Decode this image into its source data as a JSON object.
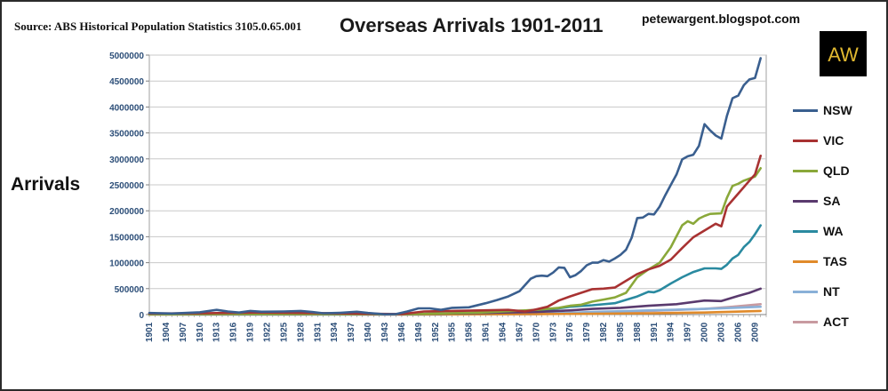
{
  "header": {
    "source": "Source: ABS Historical Population Statistics 3105.0.65.001",
    "blog": "petewargent.blogspot.com",
    "logo_text": "AW"
  },
  "chart_data": {
    "type": "line",
    "title": "Overseas Arrivals 1901-2011",
    "xlabel": "",
    "ylabel": "Arrivals",
    "ylim": [
      0,
      5000000
    ],
    "yticks": [
      0,
      500000,
      1000000,
      1500000,
      2000000,
      2500000,
      3000000,
      3500000,
      4000000,
      4500000,
      5000000
    ],
    "ytick_labels": [
      "0",
      "500000",
      "1000000",
      "1500000",
      "2000000",
      "2500000",
      "3000000",
      "3500000",
      "4000000",
      "4500000",
      "5000000"
    ],
    "x_start": 1901,
    "x_end": 2011,
    "xtick_labels": [
      "1901",
      "1904",
      "1907",
      "1910",
      "1913",
      "1916",
      "1919",
      "1922",
      "1925",
      "1928",
      "1931",
      "1934",
      "1937",
      "1940",
      "1943",
      "1946",
      "1949",
      "1952",
      "1955",
      "1958",
      "1961",
      "1964",
      "1967",
      "1970",
      "1973",
      "1976",
      "1979",
      "1982",
      "1985",
      "1988",
      "1991",
      "1994",
      "1997",
      "2000",
      "2003",
      "2006",
      "2009"
    ],
    "grid": true,
    "legend_position": "right",
    "series": [
      {
        "name": "NSW",
        "color": "#3a5f8f",
        "points": [
          [
            1901,
            30000
          ],
          [
            1905,
            20000
          ],
          [
            1910,
            45000
          ],
          [
            1913,
            90000
          ],
          [
            1915,
            60000
          ],
          [
            1917,
            40000
          ],
          [
            1919,
            70000
          ],
          [
            1921,
            55000
          ],
          [
            1925,
            60000
          ],
          [
            1928,
            70000
          ],
          [
            1930,
            50000
          ],
          [
            1932,
            25000
          ],
          [
            1935,
            35000
          ],
          [
            1938,
            55000
          ],
          [
            1940,
            30000
          ],
          [
            1943,
            5000
          ],
          [
            1945,
            10000
          ],
          [
            1947,
            60000
          ],
          [
            1949,
            120000
          ],
          [
            1951,
            120000
          ],
          [
            1953,
            90000
          ],
          [
            1955,
            130000
          ],
          [
            1958,
            140000
          ],
          [
            1961,
            220000
          ],
          [
            1963,
            280000
          ],
          [
            1965,
            350000
          ],
          [
            1967,
            450000
          ],
          [
            1969,
            690000
          ],
          [
            1970,
            740000
          ],
          [
            1971,
            750000
          ],
          [
            1972,
            740000
          ],
          [
            1973,
            810000
          ],
          [
            1974,
            910000
          ],
          [
            1975,
            900000
          ],
          [
            1976,
            720000
          ],
          [
            1977,
            760000
          ],
          [
            1978,
            840000
          ],
          [
            1979,
            950000
          ],
          [
            1980,
            1000000
          ],
          [
            1981,
            1000000
          ],
          [
            1982,
            1050000
          ],
          [
            1983,
            1020000
          ],
          [
            1984,
            1080000
          ],
          [
            1985,
            1150000
          ],
          [
            1986,
            1250000
          ],
          [
            1987,
            1480000
          ],
          [
            1988,
            1860000
          ],
          [
            1989,
            1870000
          ],
          [
            1990,
            1940000
          ],
          [
            1991,
            1930000
          ],
          [
            1992,
            2080000
          ],
          [
            1993,
            2300000
          ],
          [
            1994,
            2500000
          ],
          [
            1995,
            2700000
          ],
          [
            1996,
            2990000
          ],
          [
            1997,
            3050000
          ],
          [
            1998,
            3080000
          ],
          [
            1999,
            3250000
          ],
          [
            2000,
            3670000
          ],
          [
            2001,
            3550000
          ],
          [
            2002,
            3450000
          ],
          [
            2003,
            3390000
          ],
          [
            2004,
            3830000
          ],
          [
            2005,
            4170000
          ],
          [
            2006,
            4220000
          ],
          [
            2007,
            4420000
          ],
          [
            2008,
            4530000
          ],
          [
            2009,
            4560000
          ],
          [
            2010,
            4940000
          ]
        ]
      },
      {
        "name": "VIC",
        "color": "#a83232",
        "points": [
          [
            1901,
            20000
          ],
          [
            1910,
            25000
          ],
          [
            1920,
            40000
          ],
          [
            1930,
            30000
          ],
          [
            1940,
            15000
          ],
          [
            1946,
            10000
          ],
          [
            1950,
            60000
          ],
          [
            1955,
            70000
          ],
          [
            1960,
            80000
          ],
          [
            1965,
            90000
          ],
          [
            1968,
            60000
          ],
          [
            1970,
            100000
          ],
          [
            1972,
            150000
          ],
          [
            1974,
            270000
          ],
          [
            1976,
            350000
          ],
          [
            1978,
            420000
          ],
          [
            1980,
            490000
          ],
          [
            1982,
            500000
          ],
          [
            1984,
            520000
          ],
          [
            1986,
            650000
          ],
          [
            1988,
            780000
          ],
          [
            1990,
            870000
          ],
          [
            1992,
            940000
          ],
          [
            1994,
            1060000
          ],
          [
            1996,
            1280000
          ],
          [
            1998,
            1490000
          ],
          [
            2000,
            1620000
          ],
          [
            2002,
            1750000
          ],
          [
            2003,
            1700000
          ],
          [
            2004,
            2080000
          ],
          [
            2006,
            2330000
          ],
          [
            2008,
            2580000
          ],
          [
            2009,
            2700000
          ],
          [
            2010,
            3060000
          ]
        ]
      },
      {
        "name": "QLD",
        "color": "#8aa83a",
        "points": [
          [
            1901,
            5000
          ],
          [
            1920,
            10000
          ],
          [
            1946,
            5000
          ],
          [
            1960,
            40000
          ],
          [
            1970,
            90000
          ],
          [
            1974,
            130000
          ],
          [
            1976,
            170000
          ],
          [
            1978,
            190000
          ],
          [
            1980,
            250000
          ],
          [
            1982,
            290000
          ],
          [
            1984,
            330000
          ],
          [
            1986,
            420000
          ],
          [
            1988,
            720000
          ],
          [
            1990,
            870000
          ],
          [
            1992,
            1000000
          ],
          [
            1994,
            1300000
          ],
          [
            1996,
            1720000
          ],
          [
            1997,
            1800000
          ],
          [
            1998,
            1750000
          ],
          [
            1999,
            1850000
          ],
          [
            2000,
            1900000
          ],
          [
            2001,
            1940000
          ],
          [
            2003,
            1950000
          ],
          [
            2004,
            2250000
          ],
          [
            2005,
            2480000
          ],
          [
            2006,
            2520000
          ],
          [
            2007,
            2580000
          ],
          [
            2008,
            2620000
          ],
          [
            2009,
            2660000
          ],
          [
            2010,
            2820000
          ]
        ]
      },
      {
        "name": "SA",
        "color": "#5a3a6e",
        "points": [
          [
            1901,
            5000
          ],
          [
            1920,
            10000
          ],
          [
            1946,
            5000
          ],
          [
            1960,
            30000
          ],
          [
            1970,
            50000
          ],
          [
            1976,
            80000
          ],
          [
            1980,
            110000
          ],
          [
            1985,
            130000
          ],
          [
            1990,
            170000
          ],
          [
            1995,
            200000
          ],
          [
            2000,
            270000
          ],
          [
            2003,
            260000
          ],
          [
            2006,
            360000
          ],
          [
            2008,
            420000
          ],
          [
            2010,
            500000
          ]
        ]
      },
      {
        "name": "WA",
        "color": "#2a8aa0",
        "points": [
          [
            1901,
            5000
          ],
          [
            1920,
            10000
          ],
          [
            1946,
            5000
          ],
          [
            1960,
            30000
          ],
          [
            1970,
            60000
          ],
          [
            1974,
            120000
          ],
          [
            1976,
            150000
          ],
          [
            1980,
            180000
          ],
          [
            1984,
            220000
          ],
          [
            1988,
            350000
          ],
          [
            1990,
            440000
          ],
          [
            1991,
            430000
          ],
          [
            1992,
            470000
          ],
          [
            1994,
            600000
          ],
          [
            1996,
            720000
          ],
          [
            1998,
            820000
          ],
          [
            2000,
            890000
          ],
          [
            2002,
            890000
          ],
          [
            2003,
            880000
          ],
          [
            2004,
            960000
          ],
          [
            2005,
            1080000
          ],
          [
            2006,
            1150000
          ],
          [
            2007,
            1300000
          ],
          [
            2008,
            1400000
          ],
          [
            2009,
            1550000
          ],
          [
            2010,
            1720000
          ]
        ]
      },
      {
        "name": "TAS",
        "color": "#e08a2a",
        "points": [
          [
            1901,
            3000
          ],
          [
            1920,
            5000
          ],
          [
            1946,
            3000
          ],
          [
            1970,
            10000
          ],
          [
            1980,
            15000
          ],
          [
            1990,
            25000
          ],
          [
            2000,
            40000
          ],
          [
            2010,
            70000
          ]
        ]
      },
      {
        "name": "NT",
        "color": "#8ab0d8",
        "points": [
          [
            1901,
            0
          ],
          [
            1946,
            0
          ],
          [
            1970,
            10000
          ],
          [
            1975,
            30000
          ],
          [
            1980,
            50000
          ],
          [
            1990,
            80000
          ],
          [
            2000,
            110000
          ],
          [
            2005,
            130000
          ],
          [
            2010,
            150000
          ]
        ]
      },
      {
        "name": "ACT",
        "color": "#c89aa0",
        "points": [
          [
            1901,
            0
          ],
          [
            1946,
            0
          ],
          [
            1970,
            10000
          ],
          [
            1980,
            30000
          ],
          [
            1990,
            70000
          ],
          [
            2000,
            110000
          ],
          [
            2005,
            150000
          ],
          [
            2010,
            200000
          ]
        ]
      }
    ]
  }
}
